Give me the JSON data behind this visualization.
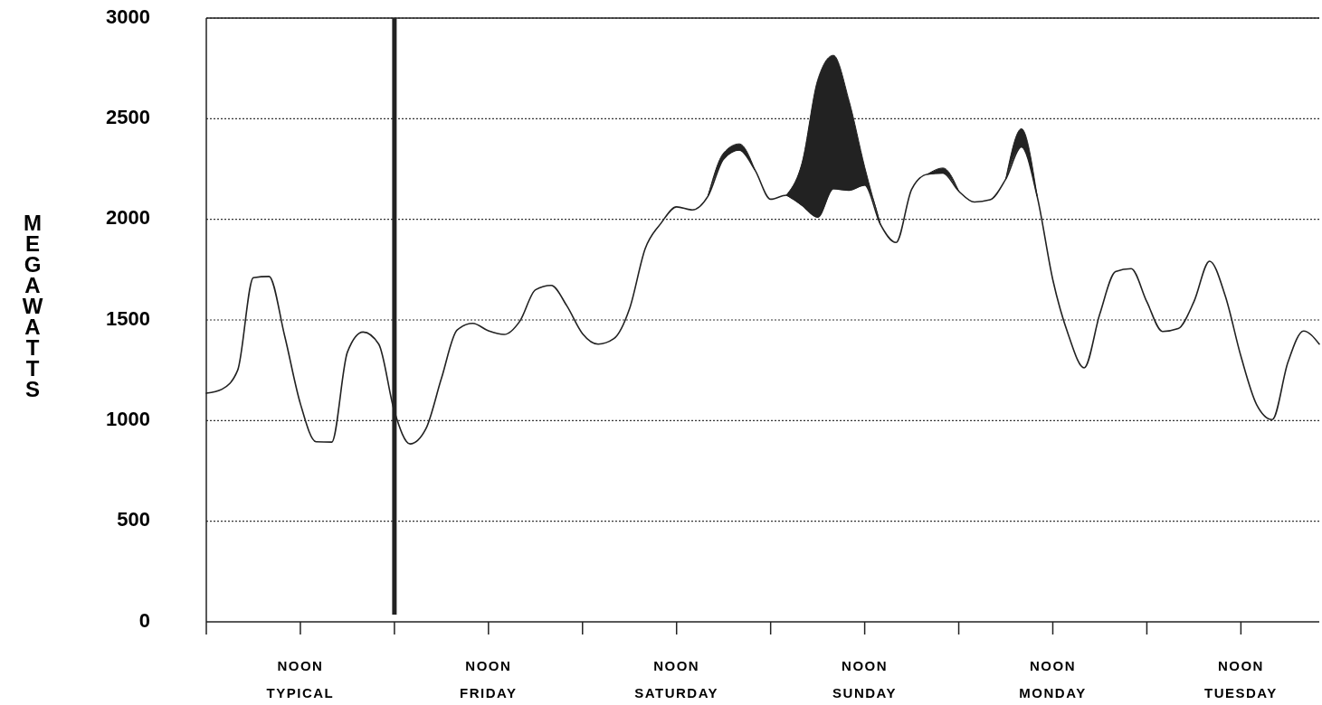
{
  "chart_data": {
    "type": "line",
    "ylabel": "MEGAWATTS",
    "ylim": [
      0,
      3000
    ],
    "yticks": [
      0,
      500,
      1000,
      1500,
      2000,
      2500,
      3000
    ],
    "categories": [
      null,
      null,
      null,
      null,
      null,
      null,
      "NOON\nTYPICAL",
      null,
      null,
      null,
      null,
      null,
      null,
      null,
      null,
      null,
      null,
      null,
      "NOON\nFRIDAY",
      null,
      null,
      null,
      null,
      null,
      null,
      null,
      null,
      null,
      null,
      null,
      "NOON\nSATURDAY",
      null,
      null,
      null,
      null,
      null,
      null,
      null,
      null,
      null,
      null,
      null,
      "NOON\nSUNDAY",
      null,
      null,
      null,
      null,
      null,
      null,
      null,
      null,
      null,
      null,
      null,
      "NOON\nMONDAY",
      null,
      null,
      null,
      null,
      null,
      null,
      null,
      null,
      null,
      null,
      null,
      "NOON\nTUESDAY",
      null,
      null,
      null,
      null,
      null
    ],
    "grid": "y",
    "marker": "none",
    "line_style": "solid",
    "ref_lines": [
      {
        "axis": "x",
        "color": "#222222"
      }
    ],
    "series": [
      {
        "color": "#222222",
        "values": [
          1136,
          1156,
          1250,
          1710,
          1716,
          1420,
          1084,
          895,
          893,
          1340,
          1440,
          1380,
          1045,
          884,
          958,
          1210,
          1450,
          1483,
          1446,
          1428,
          1494,
          1650,
          1672,
          1570,
          1432,
          1380,
          1407,
          1556,
          1855,
          1980,
          2062,
          2047,
          2115,
          2300,
          2344,
          2245,
          2100,
          2120,
          2070,
          2011,
          2152,
          2145,
          2170,
          1975,
          1885,
          2150,
          2224,
          2230,
          2140,
          2086,
          2097,
          2200,
          2360,
          2115,
          1700,
          1425,
          1262,
          1530,
          1740,
          1755,
          1590,
          1443,
          1457,
          1590,
          1792,
          1620,
          1320,
          1080,
          1005,
          1290,
          1445,
          1380
        ],
        "lower": [
          null,
          null,
          null,
          null,
          null,
          null,
          null,
          null,
          null,
          null,
          null,
          null,
          null,
          null,
          null,
          null,
          null,
          null,
          null,
          null,
          null,
          null,
          null,
          null,
          null,
          null,
          null,
          null,
          null,
          null,
          null,
          null,
          2115,
          2300,
          2344,
          2245,
          null,
          2120,
          2070,
          2011,
          2152,
          2145,
          2170,
          1975,
          null,
          null,
          2224,
          2230,
          2140,
          null,
          null,
          2200,
          2360,
          2115,
          null,
          null,
          null,
          null,
          null,
          null,
          null,
          null,
          null,
          null,
          null,
          null,
          null,
          null,
          null,
          null,
          null,
          null
        ],
        "upper": [
          null,
          null,
          null,
          null,
          null,
          null,
          null,
          null,
          null,
          null,
          null,
          null,
          null,
          null,
          null,
          null,
          null,
          null,
          null,
          null,
          null,
          null,
          null,
          null,
          null,
          null,
          null,
          null,
          null,
          null,
          null,
          null,
          2115,
          2330,
          2375,
          2245,
          null,
          2120,
          2280,
          2692,
          2815,
          2590,
          2260,
          1975,
          null,
          null,
          2224,
          2255,
          2140,
          null,
          null,
          2200,
          2450,
          2115,
          null,
          null,
          null,
          null,
          null,
          null,
          null,
          null,
          null,
          null,
          null,
          null,
          null,
          null,
          null,
          null,
          null,
          null
        ]
      }
    ]
  }
}
